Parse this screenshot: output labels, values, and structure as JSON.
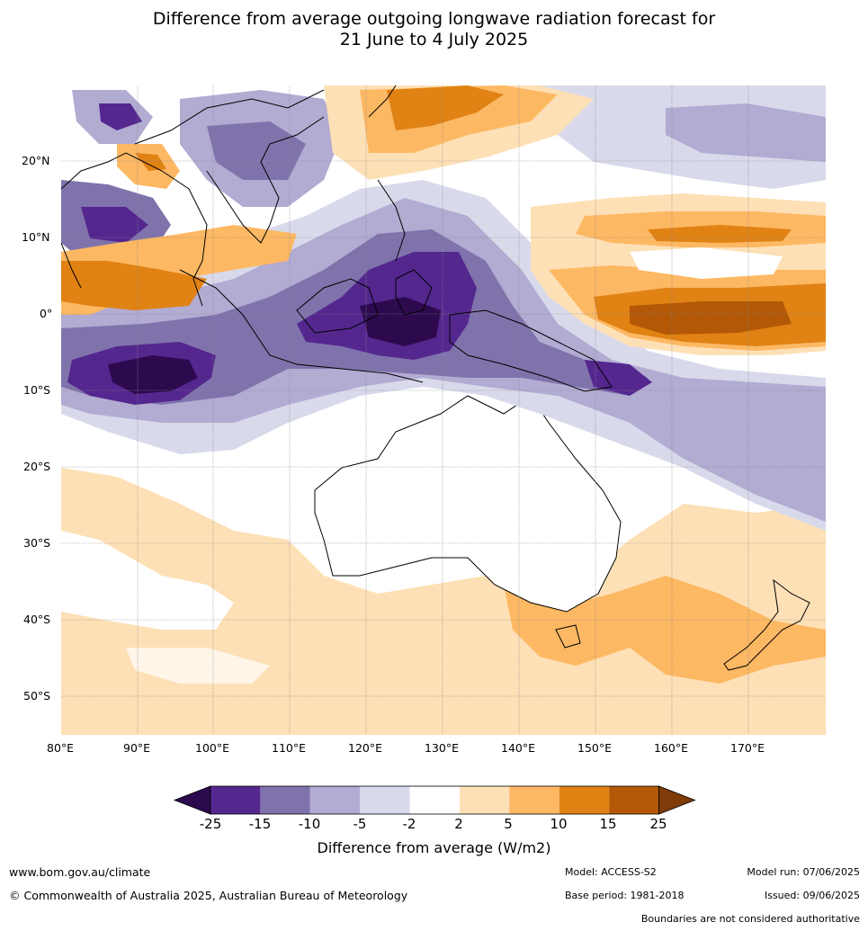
{
  "title_line1": "Difference from average outgoing longwave radiation forecast for",
  "title_line2": "21 June to 4 July 2025",
  "lat_ticks": [
    "20°N",
    "10°N",
    "0°",
    "10°S",
    "20°S",
    "30°S",
    "40°S",
    "50°S"
  ],
  "lon_ticks": [
    "80°E",
    "90°E",
    "100°E",
    "110°E",
    "120°E",
    "130°E",
    "140°E",
    "150°E",
    "160°E",
    "170°E"
  ],
  "colorbar": {
    "labels": [
      "-25",
      "-15",
      "-10",
      "-5",
      "-2",
      "2",
      "5",
      "10",
      "15",
      "25"
    ],
    "colors": [
      "#2d0a4e",
      "#54278f",
      "#8073ac",
      "#b2abd2",
      "#d8daeb",
      "#ffffff",
      "#fee0b6",
      "#fdb863",
      "#e08214",
      "#b35806",
      "#7f3b08"
    ],
    "title": "Difference from average (W/m2)"
  },
  "footer": {
    "website": "www.bom.gov.au/climate",
    "copyright": "© Commonwealth of Australia 2025, Australian Bureau of Meteorology",
    "model": "Model: ACCESS-S2",
    "base_period": "Base period: 1981-2018",
    "model_run": "Model run: 07/06/2025",
    "issued": "Issued: 09/06/2025",
    "disclaimer": "Boundaries are not considered authoritative"
  }
}
